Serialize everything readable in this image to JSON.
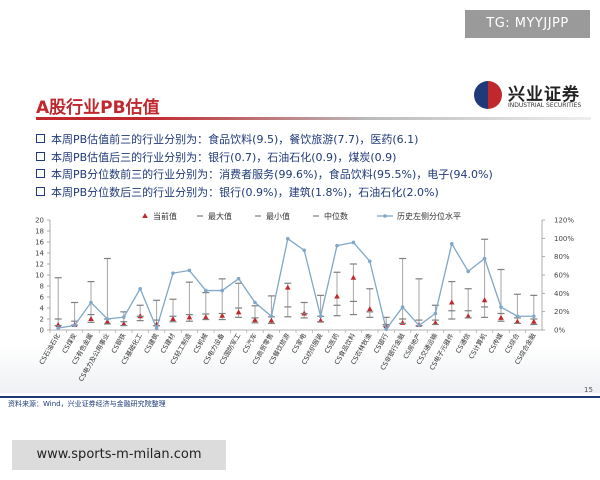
{
  "badge": "TG: MYYJJPP",
  "header": {
    "title": "A股行业PB估值",
    "logo_cn": "兴业证券",
    "logo_en": "INDUSTRIAL SECURITIES"
  },
  "bullets": [
    "本周PB估值前三的行业分别为：食品饮料(9.5)，餐饮旅游(7.7)，医药(6.1)",
    "本周PB估值后三的行业分别为：银行(0.7)，石油石化(0.9)，煤炭(0.9)",
    "本周PB分位数前三的行业分别为：消费者服务(99.6%)，食品饮料(95.5%)，电子(94.0%)",
    "本周PB分位数后三的行业分别为：银行(0.9%)，建筑(1.8%)，石油石化(2.0%)"
  ],
  "footer": {
    "source": "资料来源：Wind，兴业证券经济与金融研究院整理",
    "page": "15"
  },
  "watermark": "www.sports-m-milan.com",
  "chart_data": {
    "type": "range",
    "categories": [
      "CS石油石化",
      "CS煤炭",
      "CS有色金属",
      "CS电力及公用事业",
      "CS钢铁",
      "CS基础化工",
      "CS建筑",
      "CS建材",
      "CS轻工制造",
      "CS机械",
      "CS电力设备",
      "CS国防军工",
      "CS汽车",
      "CS商贸零售",
      "CS餐饮旅游",
      "CS家电",
      "CS纺织服装",
      "CS医药",
      "CS食品饮料",
      "CS农林牧渔",
      "CS银行",
      "CS非银行金融",
      "CS房地产",
      "CS交通运输",
      "CS电子元器件",
      "CS通信",
      "CS计算机",
      "CS传媒",
      "CS综合",
      "CS综合金融"
    ],
    "series": [
      {
        "name": "当前值",
        "color": "#c0282e",
        "marker": "triangle",
        "values": [
          0.9,
          0.9,
          2.0,
          1.5,
          1.1,
          2.5,
          1.0,
          2.0,
          2.3,
          2.3,
          2.6,
          3.2,
          1.8,
          1.7,
          7.7,
          3.0,
          1.7,
          6.1,
          9.5,
          3.8,
          0.7,
          1.3,
          0.9,
          1.3,
          5.0,
          2.5,
          5.4,
          2.2,
          1.5,
          1.5
        ]
      },
      {
        "name": "最大值",
        "color": "#7f7f7f",
        "marker": "dash",
        "values": [
          9.5,
          5.0,
          8.8,
          13.0,
          3.3,
          4.5,
          5.4,
          5.6,
          8.7,
          6.8,
          9.3,
          8.5,
          4.4,
          6.2,
          8.5,
          5.0,
          6.3,
          10.5,
          12.0,
          7.5,
          2.3,
          13.0,
          9.3,
          4.5,
          8.8,
          7.5,
          16.5,
          11.0,
          6.5,
          6.3
        ]
      },
      {
        "name": "最小值",
        "color": "#7f7f7f",
        "marker": "dash",
        "values": [
          0.8,
          0.9,
          1.4,
          1.1,
          0.8,
          1.7,
          0.8,
          1.5,
          1.6,
          1.9,
          1.9,
          2.3,
          1.3,
          1.2,
          2.4,
          2.2,
          1.5,
          2.6,
          2.8,
          2.3,
          0.7,
          1.2,
          0.8,
          1.0,
          2.0,
          2.2,
          2.3,
          1.6,
          1.2,
          1.0
        ]
      },
      {
        "name": "中位数",
        "color": "#7f7f7f",
        "marker": "dash",
        "values": [
          2.0,
          1.6,
          2.8,
          2.0,
          1.5,
          2.5,
          1.8,
          2.5,
          2.8,
          2.9,
          3.0,
          4.0,
          2.2,
          2.4,
          4.2,
          3.0,
          2.5,
          4.5,
          5.2,
          3.3,
          1.0,
          2.0,
          1.8,
          1.8,
          3.5,
          3.5,
          4.2,
          3.0,
          2.2,
          2.0
        ]
      },
      {
        "name": "历史左侧分位水平",
        "color": "#7fa7c9",
        "marker": "line",
        "axis": "y2",
        "values": [
          2.0,
          5,
          30,
          12,
          14,
          45,
          1.8,
          62,
          65,
          43,
          43,
          56,
          30,
          15,
          99.6,
          87,
          15,
          92,
          95.5,
          75,
          0.9,
          25,
          5,
          18,
          94,
          64,
          78,
          25,
          15,
          15
        ]
      }
    ],
    "range_color": "#a6a6a6",
    "ylim": [
      0,
      20
    ],
    "yticks": [
      0,
      2,
      4,
      6,
      8,
      10,
      12,
      14,
      16,
      18,
      20
    ],
    "y2lim": [
      0,
      120
    ],
    "y2ticks": [
      {
        "value": 0,
        "label": "0%"
      },
      {
        "value": 20,
        "label": "20%"
      },
      {
        "value": 40,
        "label": "40%"
      },
      {
        "value": 60,
        "label": "60%"
      },
      {
        "value": 80,
        "label": "80%"
      },
      {
        "value": 100,
        "label": "100%"
      },
      {
        "value": 120,
        "label": "120%"
      }
    ],
    "grid": false
  }
}
